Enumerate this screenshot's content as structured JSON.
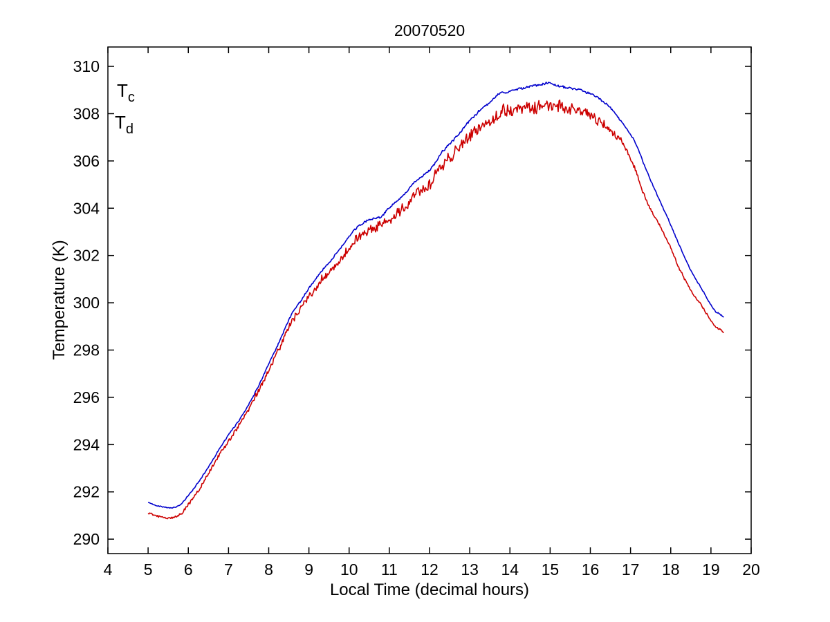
{
  "page": {
    "background_color": "#ffffff"
  },
  "chart_data": {
    "type": "line",
    "title": "20070520",
    "xlabel": "Local Time (decimal hours)",
    "ylabel": "Temperature (K)",
    "xlim": [
      4,
      20
    ],
    "ylim": [
      289.39,
      310.82
    ],
    "xticks": [
      4,
      5,
      6,
      7,
      8,
      9,
      10,
      11,
      12,
      13,
      14,
      15,
      16,
      17,
      18,
      19,
      20
    ],
    "yticks": [
      290,
      292,
      294,
      296,
      298,
      300,
      302,
      304,
      306,
      308,
      310
    ],
    "grid": false,
    "legend_position": "top-left-inside",
    "axis_color": "#000000",
    "sample_step": 0.02,
    "noise_seed": 42,
    "series": [
      {
        "name": "Tc",
        "label_main": "T",
        "label_sub": "c",
        "color": "#0000CC",
        "x_start": 5.0,
        "x_end": 19.32,
        "anchors": [
          [
            5.0,
            291.55
          ],
          [
            5.15,
            291.45
          ],
          [
            5.35,
            291.38
          ],
          [
            5.6,
            291.33
          ],
          [
            5.8,
            291.45
          ],
          [
            6.0,
            291.85
          ],
          [
            6.2,
            292.3
          ],
          [
            6.5,
            293.05
          ],
          [
            6.75,
            293.75
          ],
          [
            7.0,
            294.4
          ],
          [
            7.25,
            295.0
          ],
          [
            7.5,
            295.7
          ],
          [
            7.75,
            296.5
          ],
          [
            8.0,
            297.4
          ],
          [
            8.25,
            298.3
          ],
          [
            8.55,
            299.45
          ],
          [
            8.8,
            300.1
          ],
          [
            9.06,
            300.75
          ],
          [
            9.3,
            301.3
          ],
          [
            9.55,
            301.8
          ],
          [
            9.8,
            302.35
          ],
          [
            10.1,
            303.0
          ],
          [
            10.38,
            303.4
          ],
          [
            10.6,
            303.55
          ],
          [
            10.78,
            303.62
          ],
          [
            10.95,
            303.95
          ],
          [
            11.2,
            304.3
          ],
          [
            11.45,
            304.7
          ],
          [
            11.64,
            305.15
          ],
          [
            11.9,
            305.45
          ],
          [
            12.1,
            305.8
          ],
          [
            12.32,
            306.4
          ],
          [
            12.6,
            306.9
          ],
          [
            12.8,
            307.3
          ],
          [
            13.05,
            307.8
          ],
          [
            13.3,
            308.2
          ],
          [
            13.55,
            308.55
          ],
          [
            13.75,
            308.85
          ],
          [
            14.0,
            308.95
          ],
          [
            14.25,
            309.05
          ],
          [
            14.5,
            309.15
          ],
          [
            14.75,
            309.2
          ],
          [
            14.95,
            309.3
          ],
          [
            15.15,
            309.2
          ],
          [
            15.4,
            309.1
          ],
          [
            15.7,
            309.0
          ],
          [
            16.0,
            308.85
          ],
          [
            16.25,
            308.6
          ],
          [
            16.5,
            308.25
          ],
          [
            16.8,
            307.6
          ],
          [
            17.1,
            306.85
          ],
          [
            17.37,
            305.7
          ],
          [
            17.65,
            304.6
          ],
          [
            17.95,
            303.5
          ],
          [
            18.25,
            302.3
          ],
          [
            18.52,
            301.3
          ],
          [
            18.8,
            300.5
          ],
          [
            19.09,
            299.7
          ],
          [
            19.2,
            299.55
          ],
          [
            19.32,
            299.4
          ]
        ],
        "noise_amp_anchors": [
          [
            5,
            0.02
          ],
          [
            7,
            0.03
          ],
          [
            9,
            0.04
          ],
          [
            11,
            0.05
          ],
          [
            13,
            0.05
          ],
          [
            15,
            0.05
          ],
          [
            16.5,
            0.04
          ],
          [
            17.5,
            0.03
          ],
          [
            19.32,
            0.02
          ]
        ]
      },
      {
        "name": "Td",
        "label_main": "T",
        "label_sub": "d",
        "color": "#CC0000",
        "x_start": 5.0,
        "x_end": 19.32,
        "anchors": [
          [
            5.0,
            291.1
          ],
          [
            5.15,
            291.0
          ],
          [
            5.35,
            290.95
          ],
          [
            5.6,
            290.9
          ],
          [
            5.8,
            291.05
          ],
          [
            6.0,
            291.45
          ],
          [
            6.2,
            291.95
          ],
          [
            6.5,
            292.75
          ],
          [
            6.75,
            293.5
          ],
          [
            7.0,
            294.15
          ],
          [
            7.25,
            294.8
          ],
          [
            7.5,
            295.5
          ],
          [
            7.75,
            296.3
          ],
          [
            8.0,
            297.15
          ],
          [
            8.25,
            298.05
          ],
          [
            8.55,
            299.15
          ],
          [
            8.8,
            299.8
          ],
          [
            9.06,
            300.35
          ],
          [
            9.3,
            300.9
          ],
          [
            9.55,
            301.35
          ],
          [
            9.8,
            301.85
          ],
          [
            10.1,
            302.55
          ],
          [
            10.38,
            302.95
          ],
          [
            10.6,
            303.15
          ],
          [
            10.78,
            303.3
          ],
          [
            10.95,
            303.55
          ],
          [
            11.2,
            303.8
          ],
          [
            11.45,
            304.2
          ],
          [
            11.64,
            304.55
          ],
          [
            11.9,
            304.9
          ],
          [
            12.1,
            305.3
          ],
          [
            12.32,
            305.85
          ],
          [
            12.6,
            306.3
          ],
          [
            12.8,
            306.7
          ],
          [
            13.05,
            307.1
          ],
          [
            13.3,
            307.45
          ],
          [
            13.55,
            307.7
          ],
          [
            13.75,
            307.95
          ],
          [
            14.0,
            308.1
          ],
          [
            14.25,
            308.25
          ],
          [
            14.5,
            308.3
          ],
          [
            14.75,
            308.3
          ],
          [
            14.95,
            308.35
          ],
          [
            15.15,
            308.3
          ],
          [
            15.4,
            308.2
          ],
          [
            15.7,
            308.1
          ],
          [
            16.0,
            307.95
          ],
          [
            16.25,
            307.65
          ],
          [
            16.5,
            307.25
          ],
          [
            16.8,
            306.7
          ],
          [
            17.1,
            305.7
          ],
          [
            17.37,
            304.4
          ],
          [
            17.65,
            303.5
          ],
          [
            17.95,
            302.5
          ],
          [
            18.25,
            301.35
          ],
          [
            18.52,
            300.45
          ],
          [
            18.8,
            299.8
          ],
          [
            19.09,
            299.05
          ],
          [
            19.2,
            298.9
          ],
          [
            19.32,
            298.75
          ]
        ],
        "noise_amp_anchors": [
          [
            5,
            0.04
          ],
          [
            6.5,
            0.07
          ],
          [
            8,
            0.12
          ],
          [
            9,
            0.17
          ],
          [
            10,
            0.2
          ],
          [
            11,
            0.22
          ],
          [
            12,
            0.27
          ],
          [
            13,
            0.3
          ],
          [
            14,
            0.28
          ],
          [
            15,
            0.28
          ],
          [
            16,
            0.24
          ],
          [
            16.6,
            0.16
          ],
          [
            17,
            0.09
          ],
          [
            17.5,
            0.07
          ],
          [
            18.2,
            0.06
          ],
          [
            19.32,
            0.05
          ]
        ]
      }
    ]
  }
}
